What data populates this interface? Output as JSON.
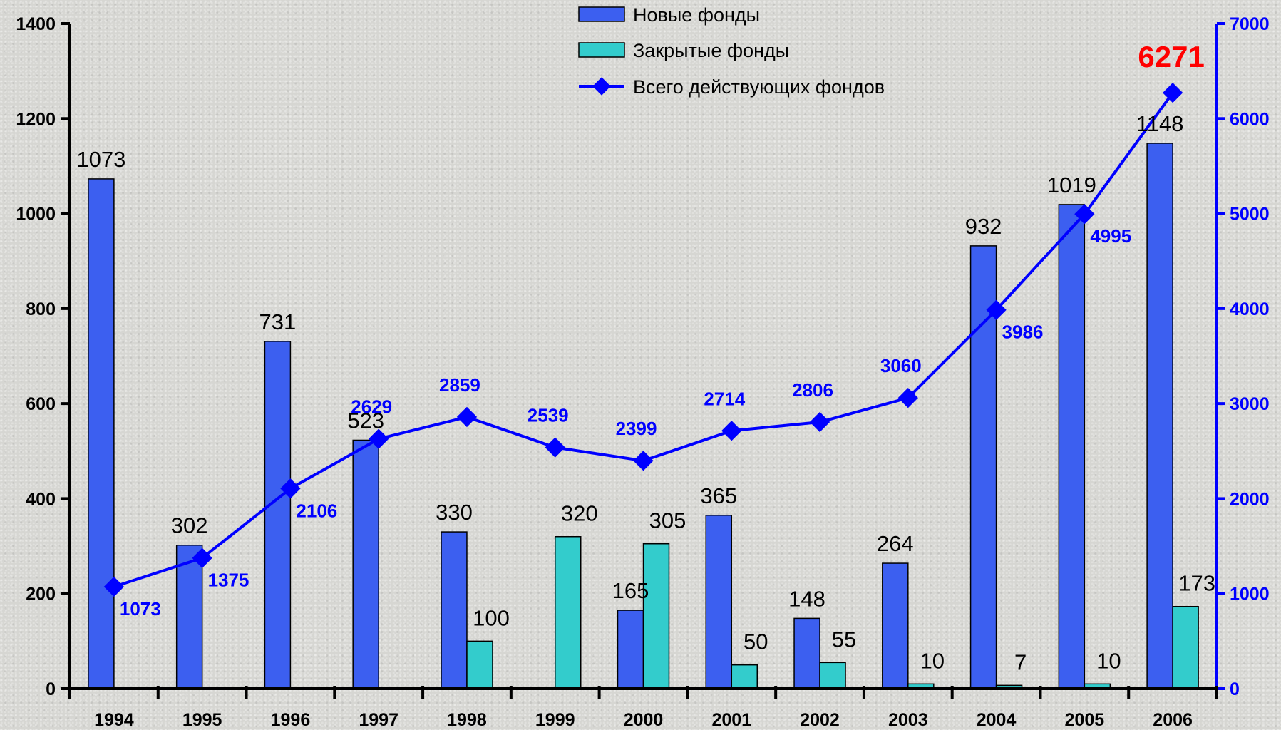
{
  "chart_data": {
    "type": "bar",
    "categories": [
      "1994",
      "1995",
      "1996",
      "1997",
      "1998",
      "1999",
      "2000",
      "2001",
      "2002",
      "2003",
      "2004",
      "2005",
      "2006"
    ],
    "series": [
      {
        "name": "Новые фонды",
        "type": "bar",
        "axis": "left",
        "color": "#3c5ff0",
        "values": [
          1073,
          302,
          731,
          523,
          330,
          0,
          165,
          365,
          148,
          264,
          932,
          1019,
          1148
        ],
        "labels": [
          "1073",
          "302",
          "731",
          "523",
          "330",
          "",
          "165",
          "365",
          "148",
          "264",
          "932",
          "1019",
          "1148"
        ]
      },
      {
        "name": "Закрытые фонды",
        "type": "bar",
        "axis": "left",
        "color": "#33cccc",
        "values": [
          0,
          0,
          0,
          0,
          100,
          320,
          305,
          50,
          55,
          10,
          7,
          10,
          173
        ],
        "labels": [
          "",
          "",
          "",
          "",
          "100",
          "320",
          "305",
          "50",
          "55",
          "10",
          "7",
          "10",
          "173"
        ]
      },
      {
        "name": "Всего действующих фондов",
        "type": "line",
        "axis": "right",
        "color": "#0000ff",
        "values": [
          1073,
          1375,
          2106,
          2629,
          2859,
          2539,
          2399,
          2714,
          2806,
          3060,
          3986,
          4995,
          6271
        ],
        "labels": [
          "1073",
          "1375",
          "2106",
          "2629",
          "2859",
          "2539",
          "2399",
          "2714",
          "2806",
          "3060",
          "3986",
          "4995",
          "6271"
        ]
      }
    ],
    "y_left": {
      "min": 0,
      "max": 1400,
      "ticks": [
        "0",
        "200",
        "400",
        "600",
        "800",
        "1000",
        "1200",
        "1400"
      ]
    },
    "y_right": {
      "min": 0,
      "max": 7000,
      "ticks": [
        "0",
        "1000",
        "2000",
        "3000",
        "4000",
        "5000",
        "6000",
        "7000"
      ]
    },
    "highlight": {
      "series": "Всего действующих фондов",
      "index": 12,
      "color": "#ff0000"
    },
    "legend_position": "top-center",
    "grid": false
  }
}
